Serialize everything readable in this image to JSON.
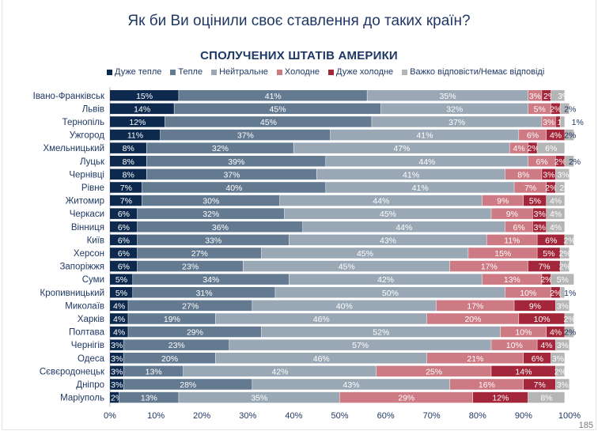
{
  "title": "Як би Ви оцінили своє ставлення до таких країн?",
  "page_number": "185",
  "chart_data": {
    "type": "bar",
    "orientation": "horizontal-stacked-100",
    "title": "СПОЛУЧЕНИХ ШТАТІВ АМЕРИКИ",
    "xlim": [
      0,
      100
    ],
    "x_ticks": [
      "0%",
      "10%",
      "20%",
      "30%",
      "40%",
      "50%",
      "60%",
      "70%",
      "80%",
      "90%",
      "100%"
    ],
    "legend_position": "top",
    "categories": [
      "Івано-Франківськ",
      "Львів",
      "Тернопіль",
      "Ужгород",
      "Хмельницький",
      "Луцьк",
      "Чернівці",
      "Рівне",
      "Житомир",
      "Черкаси",
      "Вінниця",
      "Київ",
      "Херсон",
      "Запоріжжя",
      "Суми",
      "Кропивницький",
      "Миколаїв",
      "Харків",
      "Полтава",
      "Чернігів",
      "Одеса",
      "Сєвєродонецьк",
      "Дніпро",
      "Маріуполь"
    ],
    "series": [
      {
        "name": "Дуже тепле",
        "color": "#0d2a4e",
        "values": [
          15,
          14,
          12,
          11,
          8,
          8,
          8,
          7,
          7,
          6,
          6,
          6,
          6,
          6,
          5,
          5,
          4,
          4,
          4,
          3,
          3,
          3,
          3,
          2
        ]
      },
      {
        "name": "Тепле",
        "color": "#637a91",
        "values": [
          41,
          45,
          45,
          37,
          32,
          39,
          37,
          40,
          30,
          32,
          36,
          33,
          27,
          23,
          34,
          31,
          27,
          19,
          29,
          23,
          20,
          13,
          28,
          13
        ]
      },
      {
        "name": "Нейтральне",
        "color": "#9aa8b6",
        "values": [
          35,
          32,
          37,
          41,
          47,
          44,
          41,
          41,
          44,
          45,
          44,
          43,
          45,
          45,
          42,
          50,
          40,
          46,
          52,
          57,
          46,
          42,
          43,
          35
        ]
      },
      {
        "name": "Холодне",
        "color": "#cd7a84",
        "values": [
          3,
          5,
          3,
          6,
          4,
          6,
          8,
          7,
          9,
          9,
          6,
          11,
          15,
          17,
          13,
          10,
          17,
          20,
          10,
          10,
          21,
          25,
          16,
          29
        ]
      },
      {
        "name": "Дуже холодне",
        "color": "#a3263a",
        "values": [
          2,
          2,
          1,
          4,
          2,
          2,
          3,
          2,
          5,
          3,
          3,
          6,
          5,
          7,
          2,
          2,
          9,
          10,
          4,
          4,
          6,
          14,
          7,
          12
        ]
      },
      {
        "name": "Важко відповісти/Немає відповіді",
        "color": "#b5b5b5",
        "values": [
          3,
          2,
          1,
          2,
          6,
          2,
          3,
          2,
          4,
          4,
          4,
          2,
          2,
          2,
          5,
          1,
          3,
          2,
          2,
          3,
          3,
          2,
          3,
          8
        ]
      }
    ]
  }
}
